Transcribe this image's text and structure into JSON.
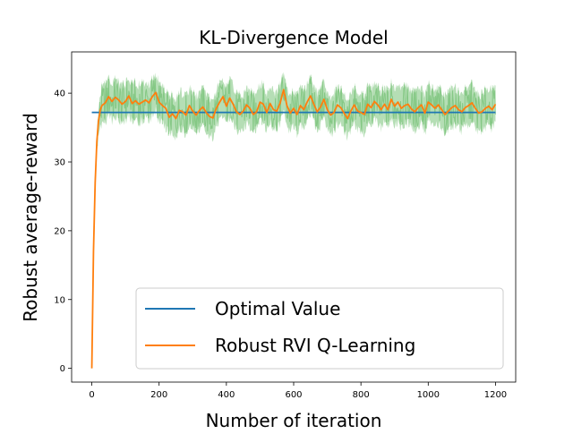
{
  "chart_data": {
    "type": "line",
    "title": "KL-Divergence Model",
    "xlabel": "Number of iteration",
    "ylabel": "Robust average-reward",
    "xlim": [
      -60,
      1260
    ],
    "ylim": [
      -2,
      46
    ],
    "x_ticks": [
      0,
      200,
      400,
      600,
      800,
      1000,
      1200
    ],
    "y_ticks": [
      0,
      10,
      20,
      30,
      40
    ],
    "grid": false,
    "legend": {
      "position": "lower-right",
      "entries": [
        "Optimal Value",
        "Robust RVI Q-Learning"
      ]
    },
    "series": [
      {
        "name": "Optimal Value",
        "color": "#1f77b4",
        "x": [
          0,
          1200
        ],
        "values": [
          37.2,
          37.2
        ]
      },
      {
        "name": "Robust RVI Q-Learning",
        "color": "#ff7f0e",
        "band_color": "#2ca02c",
        "band_spread": 3.5,
        "x": [
          0,
          5,
          10,
          15,
          20,
          25,
          30,
          40,
          50,
          60,
          70,
          80,
          90,
          100,
          110,
          120,
          130,
          140,
          150,
          160,
          170,
          180,
          190,
          200,
          210,
          220,
          230,
          240,
          250,
          260,
          270,
          280,
          290,
          300,
          310,
          320,
          330,
          340,
          350,
          360,
          370,
          380,
          390,
          400,
          410,
          420,
          430,
          440,
          450,
          460,
          470,
          480,
          490,
          500,
          510,
          520,
          530,
          540,
          550,
          560,
          570,
          580,
          590,
          600,
          610,
          620,
          630,
          640,
          650,
          660,
          670,
          680,
          690,
          700,
          710,
          720,
          730,
          740,
          750,
          760,
          770,
          780,
          790,
          800,
          810,
          820,
          830,
          840,
          850,
          860,
          870,
          880,
          890,
          900,
          910,
          920,
          930,
          940,
          950,
          960,
          970,
          980,
          990,
          1000,
          1010,
          1020,
          1030,
          1040,
          1050,
          1060,
          1070,
          1080,
          1090,
          1100,
          1110,
          1120,
          1130,
          1140,
          1150,
          1160,
          1170,
          1180,
          1190,
          1200
        ],
        "values": [
          0,
          17,
          27,
          33,
          36,
          37.5,
          38.2,
          38.6,
          39.5,
          38.8,
          39.4,
          39,
          38.4,
          38.8,
          39.6,
          38.5,
          38.9,
          38.4,
          38.7,
          39,
          38.6,
          39.5,
          40.1,
          38.7,
          38.2,
          37.8,
          36.5,
          37,
          36.3,
          37.5,
          37.3,
          36.8,
          38.2,
          37.4,
          36.8,
          37.5,
          38,
          37.2,
          36.6,
          36.4,
          37.8,
          38.7,
          39.5,
          38.1,
          39.3,
          38.4,
          37.3,
          36.9,
          37.4,
          38.3,
          37.8,
          36.9,
          37.3,
          38.7,
          38.4,
          37.2,
          38.5,
          37.6,
          37.4,
          38.6,
          40.5,
          38.2,
          37.1,
          37.8,
          36.9,
          38.2,
          37.6,
          38.7,
          39.6,
          38.4,
          37.3,
          38,
          39.1,
          37.6,
          36.8,
          37.2,
          38.3,
          37.9,
          37.1,
          36.3,
          37.4,
          38.3,
          37.4,
          37.2,
          36.9,
          38.4,
          37.9,
          38.8,
          38.3,
          37.6,
          38.4,
          37.6,
          39.1,
          38.1,
          38.7,
          37.8,
          38.2,
          38.4,
          37.7,
          37.3,
          37.9,
          38.3,
          37.1,
          38.7,
          38.3,
          37.8,
          38.3,
          37.6,
          36.9,
          37.4,
          37.9,
          38.2,
          37.6,
          37.3,
          37.9,
          38.2,
          38.6,
          37.8,
          37.1,
          37.3,
          37.8,
          38.1,
          37.6,
          38.4
        ]
      }
    ]
  }
}
